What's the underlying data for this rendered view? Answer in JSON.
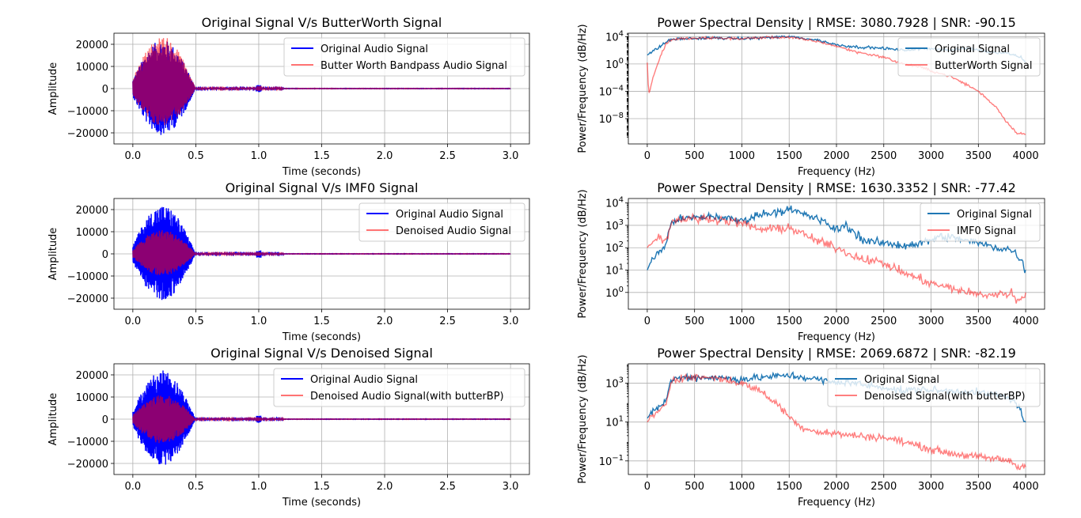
{
  "chart_data": [
    {
      "type": "line",
      "title": "Original Signal V/s ButterWorth Signal",
      "xlabel": "Time (seconds)",
      "ylabel": "Amplitude",
      "xlim": [
        -0.15,
        3.15
      ],
      "ylim": [
        -25000,
        25000
      ],
      "x_ticks": [
        "0.0",
        "0.5",
        "1.0",
        "1.5",
        "2.0",
        "2.5",
        "3.0"
      ],
      "y_ticks": [
        "20000",
        "10000",
        "0",
        "−10000",
        "−20000"
      ],
      "x_tick_values": [
        0,
        0.5,
        1.0,
        1.5,
        2.0,
        2.5,
        3.0
      ],
      "y_tick_values": [
        20000,
        10000,
        0,
        -10000,
        -20000
      ],
      "grid": true,
      "legend_position": "upper right",
      "series": [
        {
          "name": "Original Audio Signal",
          "color": "#0000ff",
          "burst_peak": 22000,
          "burst_min": -21000,
          "burst_end": 0.5,
          "click_time": 1.0,
          "click_amp": 1700
        },
        {
          "name": "Butter Worth Bandpass Audio Signal",
          "color": "#ff0000",
          "alpha": 0.55,
          "burst_peak": 23500,
          "burst_min": -17000,
          "burst_end": 0.5,
          "click_time": 1.0,
          "click_amp": 1200
        }
      ]
    },
    {
      "type": "line",
      "log_y": true,
      "title": "Power Spectral Density | RMSE: 3080.7928 | SNR: -90.15",
      "xlabel": "Frequency (Hz)",
      "ylabel": "Power/Frequency (dB/Hz)",
      "xlim": [
        -200,
        4200
      ],
      "ylim_log10": [
        -11.7,
        4.5
      ],
      "x_ticks": [
        "0",
        "500",
        "1000",
        "1500",
        "2000",
        "2500",
        "3000",
        "3500",
        "4000"
      ],
      "x_tick_values": [
        0,
        500,
        1000,
        1500,
        2000,
        2500,
        3000,
        3500,
        4000
      ],
      "y_ticks": [
        "10^4",
        "10^0",
        "10^−4",
        "10^−8"
      ],
      "y_tick_exponents": [
        4,
        0,
        -4,
        -8
      ],
      "grid": true,
      "legend_position": "upper right",
      "series": [
        {
          "name": "Original Signal",
          "color": "#1f77b4",
          "log10_points": [
            [
              0,
              1.3
            ],
            [
              30,
              1.6
            ],
            [
              100,
              2.2
            ],
            [
              200,
              3.2
            ],
            [
              250,
              3.6
            ],
            [
              400,
              3.7
            ],
            [
              700,
              3.8
            ],
            [
              1000,
              3.7
            ],
            [
              1300,
              3.9
            ],
            [
              1500,
              4.0
            ],
            [
              1800,
              3.5
            ],
            [
              2000,
              2.8
            ],
            [
              2200,
              2.5
            ],
            [
              2500,
              2.3
            ],
            [
              2700,
              2.0
            ],
            [
              3000,
              2.3
            ],
            [
              3200,
              2.0
            ],
            [
              3400,
              2.3
            ],
            [
              3600,
              1.8
            ],
            [
              3800,
              1.6
            ],
            [
              3950,
              1.0
            ],
            [
              4000,
              0.3
            ]
          ]
        },
        {
          "name": "ButterWorth Signal",
          "color": "#ff0000",
          "alpha": 0.5,
          "log10_points": [
            [
              0,
              0.2
            ],
            [
              15,
              -4.5
            ],
            [
              60,
              -2.0
            ],
            [
              130,
              0.8
            ],
            [
              200,
              3.0
            ],
            [
              260,
              3.6
            ],
            [
              400,
              3.7
            ],
            [
              700,
              3.8
            ],
            [
              1000,
              3.7
            ],
            [
              1300,
              3.9
            ],
            [
              1500,
              3.9
            ],
            [
              1800,
              3.3
            ],
            [
              2000,
              2.6
            ],
            [
              2200,
              1.8
            ],
            [
              2500,
              1.0
            ],
            [
              2700,
              0.0
            ],
            [
              2900,
              -0.5
            ],
            [
              3000,
              -1.0
            ],
            [
              3200,
              -1.8
            ],
            [
              3400,
              -3.2
            ],
            [
              3500,
              -4.0
            ],
            [
              3600,
              -5.2
            ],
            [
              3700,
              -6.5
            ],
            [
              3800,
              -8.5
            ],
            [
              3900,
              -10.0
            ],
            [
              4000,
              -10.3
            ]
          ]
        }
      ]
    },
    {
      "type": "line",
      "title": "Original Signal V/s IMF0 Signal",
      "xlabel": "Time (seconds)",
      "ylabel": "Amplitude",
      "xlim": [
        -0.15,
        3.15
      ],
      "ylim": [
        -25000,
        25000
      ],
      "x_ticks": [
        "0.0",
        "0.5",
        "1.0",
        "1.5",
        "2.0",
        "2.5",
        "3.0"
      ],
      "y_ticks": [
        "20000",
        "10000",
        "0",
        "−10000",
        "−20000"
      ],
      "x_tick_values": [
        0,
        0.5,
        1.0,
        1.5,
        2.0,
        2.5,
        3.0
      ],
      "y_tick_values": [
        20000,
        10000,
        0,
        -10000,
        -20000
      ],
      "grid": true,
      "legend_position": "upper right",
      "series": [
        {
          "name": "Original Audio Signal",
          "color": "#0000ff",
          "burst_peak": 22000,
          "burst_min": -21000,
          "burst_end": 0.5,
          "click_time": 1.0,
          "click_amp": 1700
        },
        {
          "name": "Denoised Audio Signal",
          "color": "#ff0000",
          "alpha": 0.55,
          "burst_peak": 11000,
          "burst_min": -10000,
          "burst_end": 0.5,
          "click_time": 1.0,
          "click_amp": 900
        }
      ]
    },
    {
      "type": "line",
      "log_y": true,
      "title": "Power Spectral Density | RMSE: 1630.3352 | SNR: -77.42",
      "xlabel": "Frequency (Hz)",
      "ylabel": "Power/Frequency (dB/Hz)",
      "xlim": [
        -200,
        4200
      ],
      "ylim_log10": [
        -0.75,
        4.2
      ],
      "x_ticks": [
        "0",
        "500",
        "1000",
        "1500",
        "2000",
        "2500",
        "3000",
        "3500",
        "4000"
      ],
      "x_tick_values": [
        0,
        500,
        1000,
        1500,
        2000,
        2500,
        3000,
        3500,
        4000
      ],
      "y_ticks": [
        "10^4",
        "10^3",
        "10^2",
        "10^1",
        "10^0"
      ],
      "y_tick_exponents": [
        4,
        3,
        2,
        1,
        0
      ],
      "grid": true,
      "legend_position": "upper right",
      "series": [
        {
          "name": "Original Signal",
          "color": "#1f77b4",
          "log10_points": [
            [
              0,
              1.0
            ],
            [
              50,
              1.5
            ],
            [
              100,
              1.7
            ],
            [
              200,
              2.1
            ],
            [
              230,
              2.8
            ],
            [
              260,
              3.2
            ],
            [
              400,
              3.3
            ],
            [
              700,
              3.4
            ],
            [
              1000,
              3.2
            ],
            [
              1200,
              3.5
            ],
            [
              1500,
              3.7
            ],
            [
              1800,
              3.3
            ],
            [
              2000,
              2.8
            ],
            [
              2100,
              3.0
            ],
            [
              2300,
              2.3
            ],
            [
              2500,
              2.2
            ],
            [
              2700,
              2.1
            ],
            [
              2900,
              2.2
            ],
            [
              3100,
              2.5
            ],
            [
              3300,
              2.4
            ],
            [
              3500,
              2.2
            ],
            [
              3700,
              2.0
            ],
            [
              3850,
              1.9
            ],
            [
              3950,
              1.5
            ],
            [
              4000,
              0.9
            ]
          ]
        },
        {
          "name": "IMF0 Signal",
          "color": "#ff0000",
          "alpha": 0.5,
          "log10_points": [
            [
              0,
              2.0
            ],
            [
              50,
              2.3
            ],
            [
              130,
              2.5
            ],
            [
              200,
              2.3
            ],
            [
              260,
              3.2
            ],
            [
              400,
              3.3
            ],
            [
              700,
              3.3
            ],
            [
              1000,
              3.1
            ],
            [
              1200,
              2.8
            ],
            [
              1500,
              2.9
            ],
            [
              1800,
              2.3
            ],
            [
              2000,
              2.0
            ],
            [
              2200,
              1.6
            ],
            [
              2500,
              1.3
            ],
            [
              2700,
              0.9
            ],
            [
              3000,
              0.4
            ],
            [
              3200,
              0.2
            ],
            [
              3500,
              -0.1
            ],
            [
              3700,
              -0.1
            ],
            [
              3850,
              0.0
            ],
            [
              3900,
              -0.4
            ],
            [
              4000,
              -0.1
            ]
          ]
        }
      ]
    },
    {
      "type": "line",
      "title": "Original Signal V/s Denoised Signal",
      "xlabel": "Time (seconds)",
      "ylabel": "Amplitude",
      "xlim": [
        -0.15,
        3.15
      ],
      "ylim": [
        -25000,
        25000
      ],
      "x_ticks": [
        "0.0",
        "0.5",
        "1.0",
        "1.5",
        "2.0",
        "2.5",
        "3.0"
      ],
      "y_ticks": [
        "20000",
        "10000",
        "0",
        "−10000",
        "−20000"
      ],
      "x_tick_values": [
        0,
        0.5,
        1.0,
        1.5,
        2.0,
        2.5,
        3.0
      ],
      "y_tick_values": [
        20000,
        10000,
        0,
        -10000,
        -20000
      ],
      "grid": true,
      "legend_position": "upper right",
      "series": [
        {
          "name": "Original Audio Signal",
          "color": "#0000ff",
          "burst_peak": 22000,
          "burst_min": -21000,
          "burst_end": 0.5,
          "click_time": 1.0,
          "click_amp": 1700
        },
        {
          "name": "Denoised Audio Signal(with butterBP)",
          "color": "#ff0000",
          "alpha": 0.55,
          "burst_peak": 11000,
          "burst_min": -11000,
          "burst_end": 0.5,
          "click_time": 1.0,
          "click_amp": 900
        }
      ]
    },
    {
      "type": "line",
      "log_y": true,
      "title": "Power Spectral Density | RMSE: 2069.6872 | SNR: -82.19",
      "xlabel": "Frequency (Hz)",
      "ylabel": "Power/Frequency (dB/Hz)",
      "xlim": [
        -200,
        4200
      ],
      "ylim_log10": [
        -1.7,
        4.0
      ],
      "x_ticks": [
        "0",
        "500",
        "1000",
        "1500",
        "2000",
        "2500",
        "3000",
        "3500",
        "4000"
      ],
      "x_tick_values": [
        0,
        500,
        1000,
        1500,
        2000,
        2500,
        3000,
        3500,
        4000
      ],
      "y_ticks": [
        "10^3",
        "10^1",
        "10^−1"
      ],
      "y_tick_exponents": [
        3,
        1,
        -1
      ],
      "grid": true,
      "legend_position": "upper right",
      "series": [
        {
          "name": "Original Signal",
          "color": "#1f77b4",
          "log10_points": [
            [
              0,
              1.2
            ],
            [
              50,
              1.5
            ],
            [
              100,
              1.7
            ],
            [
              200,
              2.1
            ],
            [
              230,
              2.8
            ],
            [
              260,
              3.2
            ],
            [
              400,
              3.3
            ],
            [
              700,
              3.3
            ],
            [
              1000,
              3.2
            ],
            [
              1200,
              3.3
            ],
            [
              1500,
              3.4
            ],
            [
              1800,
              3.2
            ],
            [
              2000,
              3.0
            ],
            [
              2100,
              3.1
            ],
            [
              2300,
              2.9
            ],
            [
              2500,
              2.8
            ],
            [
              2700,
              2.6
            ],
            [
              2900,
              2.7
            ],
            [
              3100,
              2.6
            ],
            [
              3300,
              2.6
            ],
            [
              3500,
              2.5
            ],
            [
              3700,
              2.4
            ],
            [
              3850,
              2.2
            ],
            [
              3950,
              1.6
            ],
            [
              4000,
              0.9
            ]
          ]
        },
        {
          "name": "Denoised Signal(with butterBP)",
          "color": "#ff0000",
          "alpha": 0.5,
          "log10_points": [
            [
              0,
              1.0
            ],
            [
              50,
              1.3
            ],
            [
              130,
              1.5
            ],
            [
              200,
              2.0
            ],
            [
              260,
              3.2
            ],
            [
              400,
              3.3
            ],
            [
              700,
              3.3
            ],
            [
              1000,
              3.0
            ],
            [
              1200,
              2.6
            ],
            [
              1400,
              1.8
            ],
            [
              1500,
              1.3
            ],
            [
              1600,
              0.8
            ],
            [
              1800,
              0.5
            ],
            [
              2000,
              0.4
            ],
            [
              2200,
              0.3
            ],
            [
              2500,
              0.2
            ],
            [
              2700,
              0.0
            ],
            [
              3000,
              -0.4
            ],
            [
              3200,
              -0.6
            ],
            [
              3500,
              -0.8
            ],
            [
              3700,
              -0.9
            ],
            [
              3850,
              -1.0
            ],
            [
              3900,
              -1.3
            ],
            [
              4000,
              -1.2
            ]
          ]
        }
      ]
    }
  ]
}
